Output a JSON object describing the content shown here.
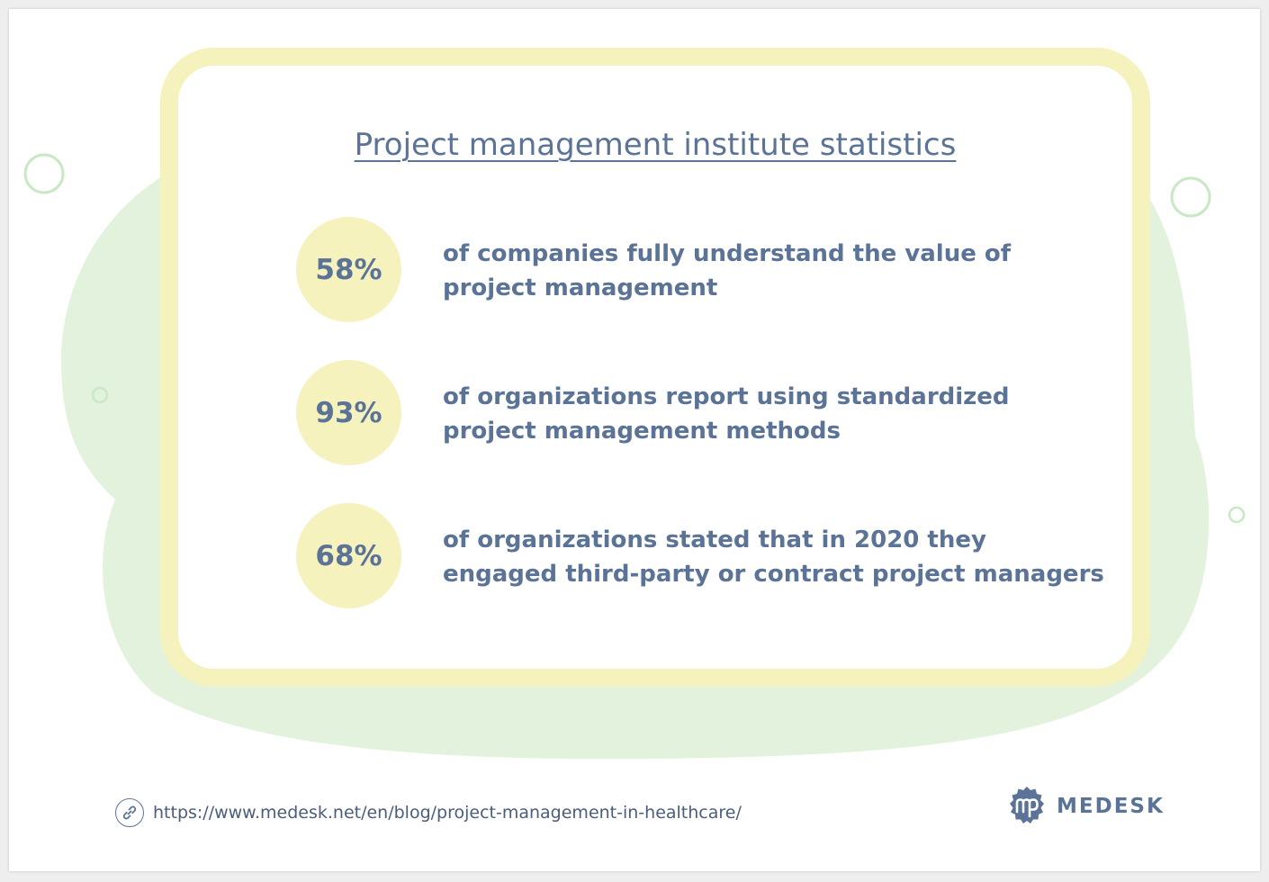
{
  "title": "Project management institute statistics",
  "stats": [
    {
      "value": "58%",
      "lines": [
        "of companies fully understand the value of",
        "project management"
      ]
    },
    {
      "value": "93%",
      "lines": [
        "of organizations report using standardized",
        "project management methods"
      ]
    },
    {
      "value": "68%",
      "lines": [
        "of organizations stated that in 2020 they",
        "engaged third-party or contract project managers"
      ]
    }
  ],
  "footer": {
    "url": "https://www.medesk.net/en/blog/project-management-in-healthcare/",
    "link_icon": "link-icon"
  },
  "brand": {
    "name": "MEDESK",
    "logo_icon": "medesk-logo-icon"
  },
  "colors": {
    "text": "#5a7396",
    "card_border": "#f5f2bd",
    "blob": "#e2f2dc",
    "ring": "#c9e8c4"
  }
}
